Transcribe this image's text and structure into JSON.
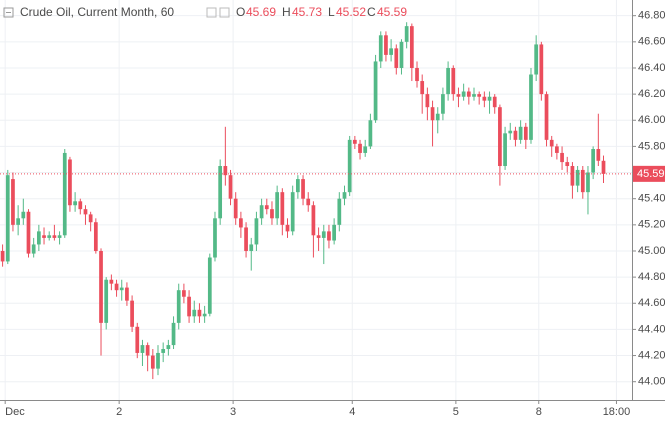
{
  "chart_data": {
    "type": "candlestick",
    "title": "Crude Oil, Current Month, 60",
    "ohlc_labels": [
      "O",
      "H",
      "L",
      "C"
    ],
    "up_color": "#53b987",
    "down_color": "#eb4d5c",
    "grid": true,
    "x": [
      0,
      1,
      2,
      3,
      4,
      5,
      6,
      7,
      8,
      9,
      10,
      11,
      12,
      13,
      14,
      15,
      16,
      17,
      18,
      19,
      20,
      21,
      22,
      23,
      24,
      25,
      26,
      27,
      28,
      29,
      30,
      31,
      32,
      33,
      34,
      35,
      36,
      37,
      38,
      39,
      40,
      41,
      42,
      43,
      44,
      45,
      46,
      47,
      48,
      49,
      50,
      51,
      52,
      53,
      54,
      55,
      56,
      57,
      58,
      59,
      60,
      61,
      62,
      63,
      64,
      65,
      66,
      67,
      68,
      69,
      70,
      71,
      72,
      73,
      74,
      75,
      76,
      77,
      78,
      79,
      80,
      81,
      82,
      83,
      84,
      85,
      86,
      87,
      88,
      89,
      90,
      91,
      92,
      93,
      94,
      95,
      96,
      97,
      98,
      99,
      100,
      101,
      102,
      103,
      104,
      105,
      106,
      107,
      108,
      109,
      110,
      111,
      112,
      113,
      114,
      115,
      116
    ],
    "open": [
      45.0,
      44.92,
      45.55,
      45.2,
      45.25,
      45.3,
      44.98,
      45.05,
      45.12,
      45.1,
      45.12,
      45.1,
      45.12,
      45.7,
      45.35,
      45.38,
      45.32,
      45.28,
      45.22,
      45.0,
      44.45,
      44.78,
      44.75,
      44.7,
      44.72,
      44.62,
      44.42,
      44.22,
      44.28,
      44.2,
      44.1,
      44.22,
      44.25,
      44.28,
      44.45,
      44.7,
      44.65,
      44.5,
      44.55,
      44.5,
      44.52,
      44.95,
      45.25,
      45.65,
      45.58,
      45.4,
      45.25,
      45.18,
      45.0,
      45.05,
      45.25,
      45.35,
      45.32,
      45.25,
      45.45,
      45.2,
      45.15,
      45.45,
      45.55,
      45.4,
      45.35,
      45.12,
      45.1,
      45.15,
      45.08,
      45.2,
      45.4,
      45.45,
      45.85,
      45.82,
      45.75,
      45.8,
      46.0,
      46.45,
      46.65,
      46.5,
      46.55,
      46.4,
      46.6,
      46.72,
      46.4,
      46.3,
      46.2,
      46.1,
      46.0,
      46.05,
      46.2,
      46.4,
      46.2,
      46.18,
      46.22,
      46.18,
      46.2,
      46.18,
      46.15,
      46.18,
      46.1,
      45.65,
      45.9,
      45.92,
      45.85,
      45.95,
      45.85,
      46.35,
      46.58,
      46.2,
      45.85,
      45.8,
      45.75,
      45.68,
      45.65,
      45.5,
      45.62,
      45.45,
      45.6,
      45.78,
      45.69
    ],
    "high": [
      45.05,
      45.62,
      45.6,
      45.35,
      45.4,
      45.32,
      45.1,
      45.2,
      45.18,
      45.15,
      45.2,
      45.15,
      45.78,
      45.72,
      45.45,
      45.4,
      45.35,
      45.3,
      45.25,
      45.02,
      44.8,
      44.82,
      44.78,
      44.78,
      44.76,
      44.66,
      44.45,
      44.32,
      44.3,
      44.25,
      44.28,
      44.3,
      44.32,
      44.5,
      44.75,
      44.75,
      44.7,
      44.62,
      44.6,
      44.58,
      44.98,
      45.3,
      45.7,
      45.95,
      45.62,
      45.45,
      45.3,
      45.22,
      45.1,
      45.3,
      45.4,
      45.4,
      45.38,
      45.5,
      45.48,
      45.25,
      45.5,
      45.58,
      45.58,
      45.45,
      45.38,
      45.18,
      45.2,
      45.2,
      45.25,
      45.45,
      45.5,
      45.88,
      45.88,
      45.85,
      45.85,
      46.05,
      46.5,
      46.68,
      46.68,
      46.62,
      46.58,
      46.62,
      46.75,
      46.74,
      46.45,
      46.35,
      46.25,
      46.15,
      46.1,
      46.25,
      46.45,
      46.42,
      46.25,
      46.28,
      46.25,
      46.25,
      46.22,
      46.22,
      46.22,
      46.2,
      46.12,
      45.95,
      45.98,
      45.95,
      46.0,
      45.98,
      46.4,
      46.65,
      46.6,
      46.22,
      45.88,
      45.82,
      45.8,
      45.72,
      45.68,
      45.65,
      45.65,
      45.65,
      45.8,
      46.05,
      45.73
    ],
    "low": [
      44.88,
      44.9,
      45.15,
      45.12,
      45.2,
      44.95,
      44.95,
      45.0,
      45.05,
      45.08,
      45.08,
      45.05,
      45.1,
      45.3,
      45.3,
      45.28,
      45.2,
      45.15,
      44.98,
      44.2,
      44.4,
      44.7,
      44.65,
      44.62,
      44.58,
      44.38,
      44.18,
      44.12,
      44.08,
      44.02,
      44.05,
      44.15,
      44.2,
      44.25,
      44.4,
      44.6,
      44.45,
      44.45,
      44.45,
      44.45,
      44.5,
      44.92,
      45.2,
      45.5,
      45.35,
      45.2,
      45.1,
      44.95,
      44.85,
      45.0,
      45.2,
      45.28,
      45.2,
      45.2,
      45.12,
      45.1,
      45.12,
      45.4,
      45.35,
      45.3,
      44.95,
      45.0,
      44.9,
      45.02,
      45.05,
      45.15,
      45.35,
      45.42,
      45.78,
      45.7,
      45.72,
      45.78,
      45.98,
      46.4,
      46.45,
      46.45,
      46.35,
      46.35,
      46.55,
      46.3,
      46.25,
      46.05,
      46.0,
      45.8,
      45.9,
      46.0,
      46.15,
      46.15,
      46.1,
      46.15,
      46.12,
      46.15,
      46.12,
      46.1,
      46.05,
      46.05,
      45.5,
      45.62,
      45.85,
      45.8,
      45.82,
      45.78,
      45.82,
      46.3,
      46.15,
      45.8,
      45.72,
      45.7,
      45.62,
      45.6,
      45.4,
      45.45,
      45.4,
      45.28,
      45.55,
      45.65,
      45.52
    ],
    "close": [
      44.92,
      45.58,
      45.2,
      45.25,
      45.3,
      44.98,
      45.05,
      45.15,
      45.1,
      45.12,
      45.1,
      45.12,
      45.75,
      45.35,
      45.38,
      45.32,
      45.28,
      45.22,
      45.0,
      44.45,
      44.78,
      44.75,
      44.7,
      44.72,
      44.62,
      44.42,
      44.22,
      44.28,
      44.2,
      44.1,
      44.22,
      44.25,
      44.28,
      44.45,
      44.7,
      44.65,
      44.5,
      44.55,
      44.5,
      44.52,
      44.95,
      45.25,
      45.65,
      45.58,
      45.4,
      45.25,
      45.18,
      45.0,
      45.05,
      45.25,
      45.35,
      45.32,
      45.25,
      45.45,
      45.2,
      45.15,
      45.45,
      45.55,
      45.4,
      45.35,
      45.12,
      45.1,
      45.15,
      45.08,
      45.2,
      45.4,
      45.45,
      45.85,
      45.82,
      45.75,
      45.8,
      46.0,
      46.45,
      46.65,
      46.5,
      46.55,
      46.4,
      46.6,
      46.72,
      46.4,
      46.3,
      46.2,
      46.1,
      46.0,
      46.05,
      46.2,
      46.4,
      46.2,
      46.18,
      46.22,
      46.18,
      46.2,
      46.18,
      46.15,
      46.18,
      46.1,
      45.65,
      45.9,
      45.92,
      45.85,
      45.95,
      45.85,
      46.35,
      46.58,
      46.2,
      45.85,
      45.8,
      45.75,
      45.68,
      45.65,
      45.5,
      45.62,
      45.45,
      45.6,
      45.78,
      45.69,
      45.59
    ],
    "xlim": [
      -0.5,
      121.5
    ],
    "xticks": [
      {
        "value": 0.5,
        "label": "Dec"
      },
      {
        "value": 22.5,
        "label": "2"
      },
      {
        "value": 44.5,
        "label": "3"
      },
      {
        "value": 67.5,
        "label": "4"
      },
      {
        "value": 87.5,
        "label": "5"
      },
      {
        "value": 103.5,
        "label": "8"
      },
      {
        "value": 118.5,
        "label": "18:00"
      }
    ],
    "ylim": [
      43.86,
      46.92
    ],
    "yticks": [
      {
        "value": 44.0,
        "label": "44.00"
      },
      {
        "value": 44.2,
        "label": "44.20"
      },
      {
        "value": 44.4,
        "label": "44.40"
      },
      {
        "value": 44.6,
        "label": "44.60"
      },
      {
        "value": 44.8,
        "label": "44.80"
      },
      {
        "value": 45.0,
        "label": "45.00"
      },
      {
        "value": 45.2,
        "label": "45.20"
      },
      {
        "value": 45.4,
        "label": "45.40"
      },
      {
        "value": 45.6,
        "label": "45.60"
      },
      {
        "value": 45.8,
        "label": "45.80"
      },
      {
        "value": 46.0,
        "label": "46.00"
      },
      {
        "value": 46.2,
        "label": "46.20"
      },
      {
        "value": 46.4,
        "label": "46.40"
      },
      {
        "value": 46.6,
        "label": "46.60"
      },
      {
        "value": 46.8,
        "label": "46.80"
      }
    ]
  }
}
